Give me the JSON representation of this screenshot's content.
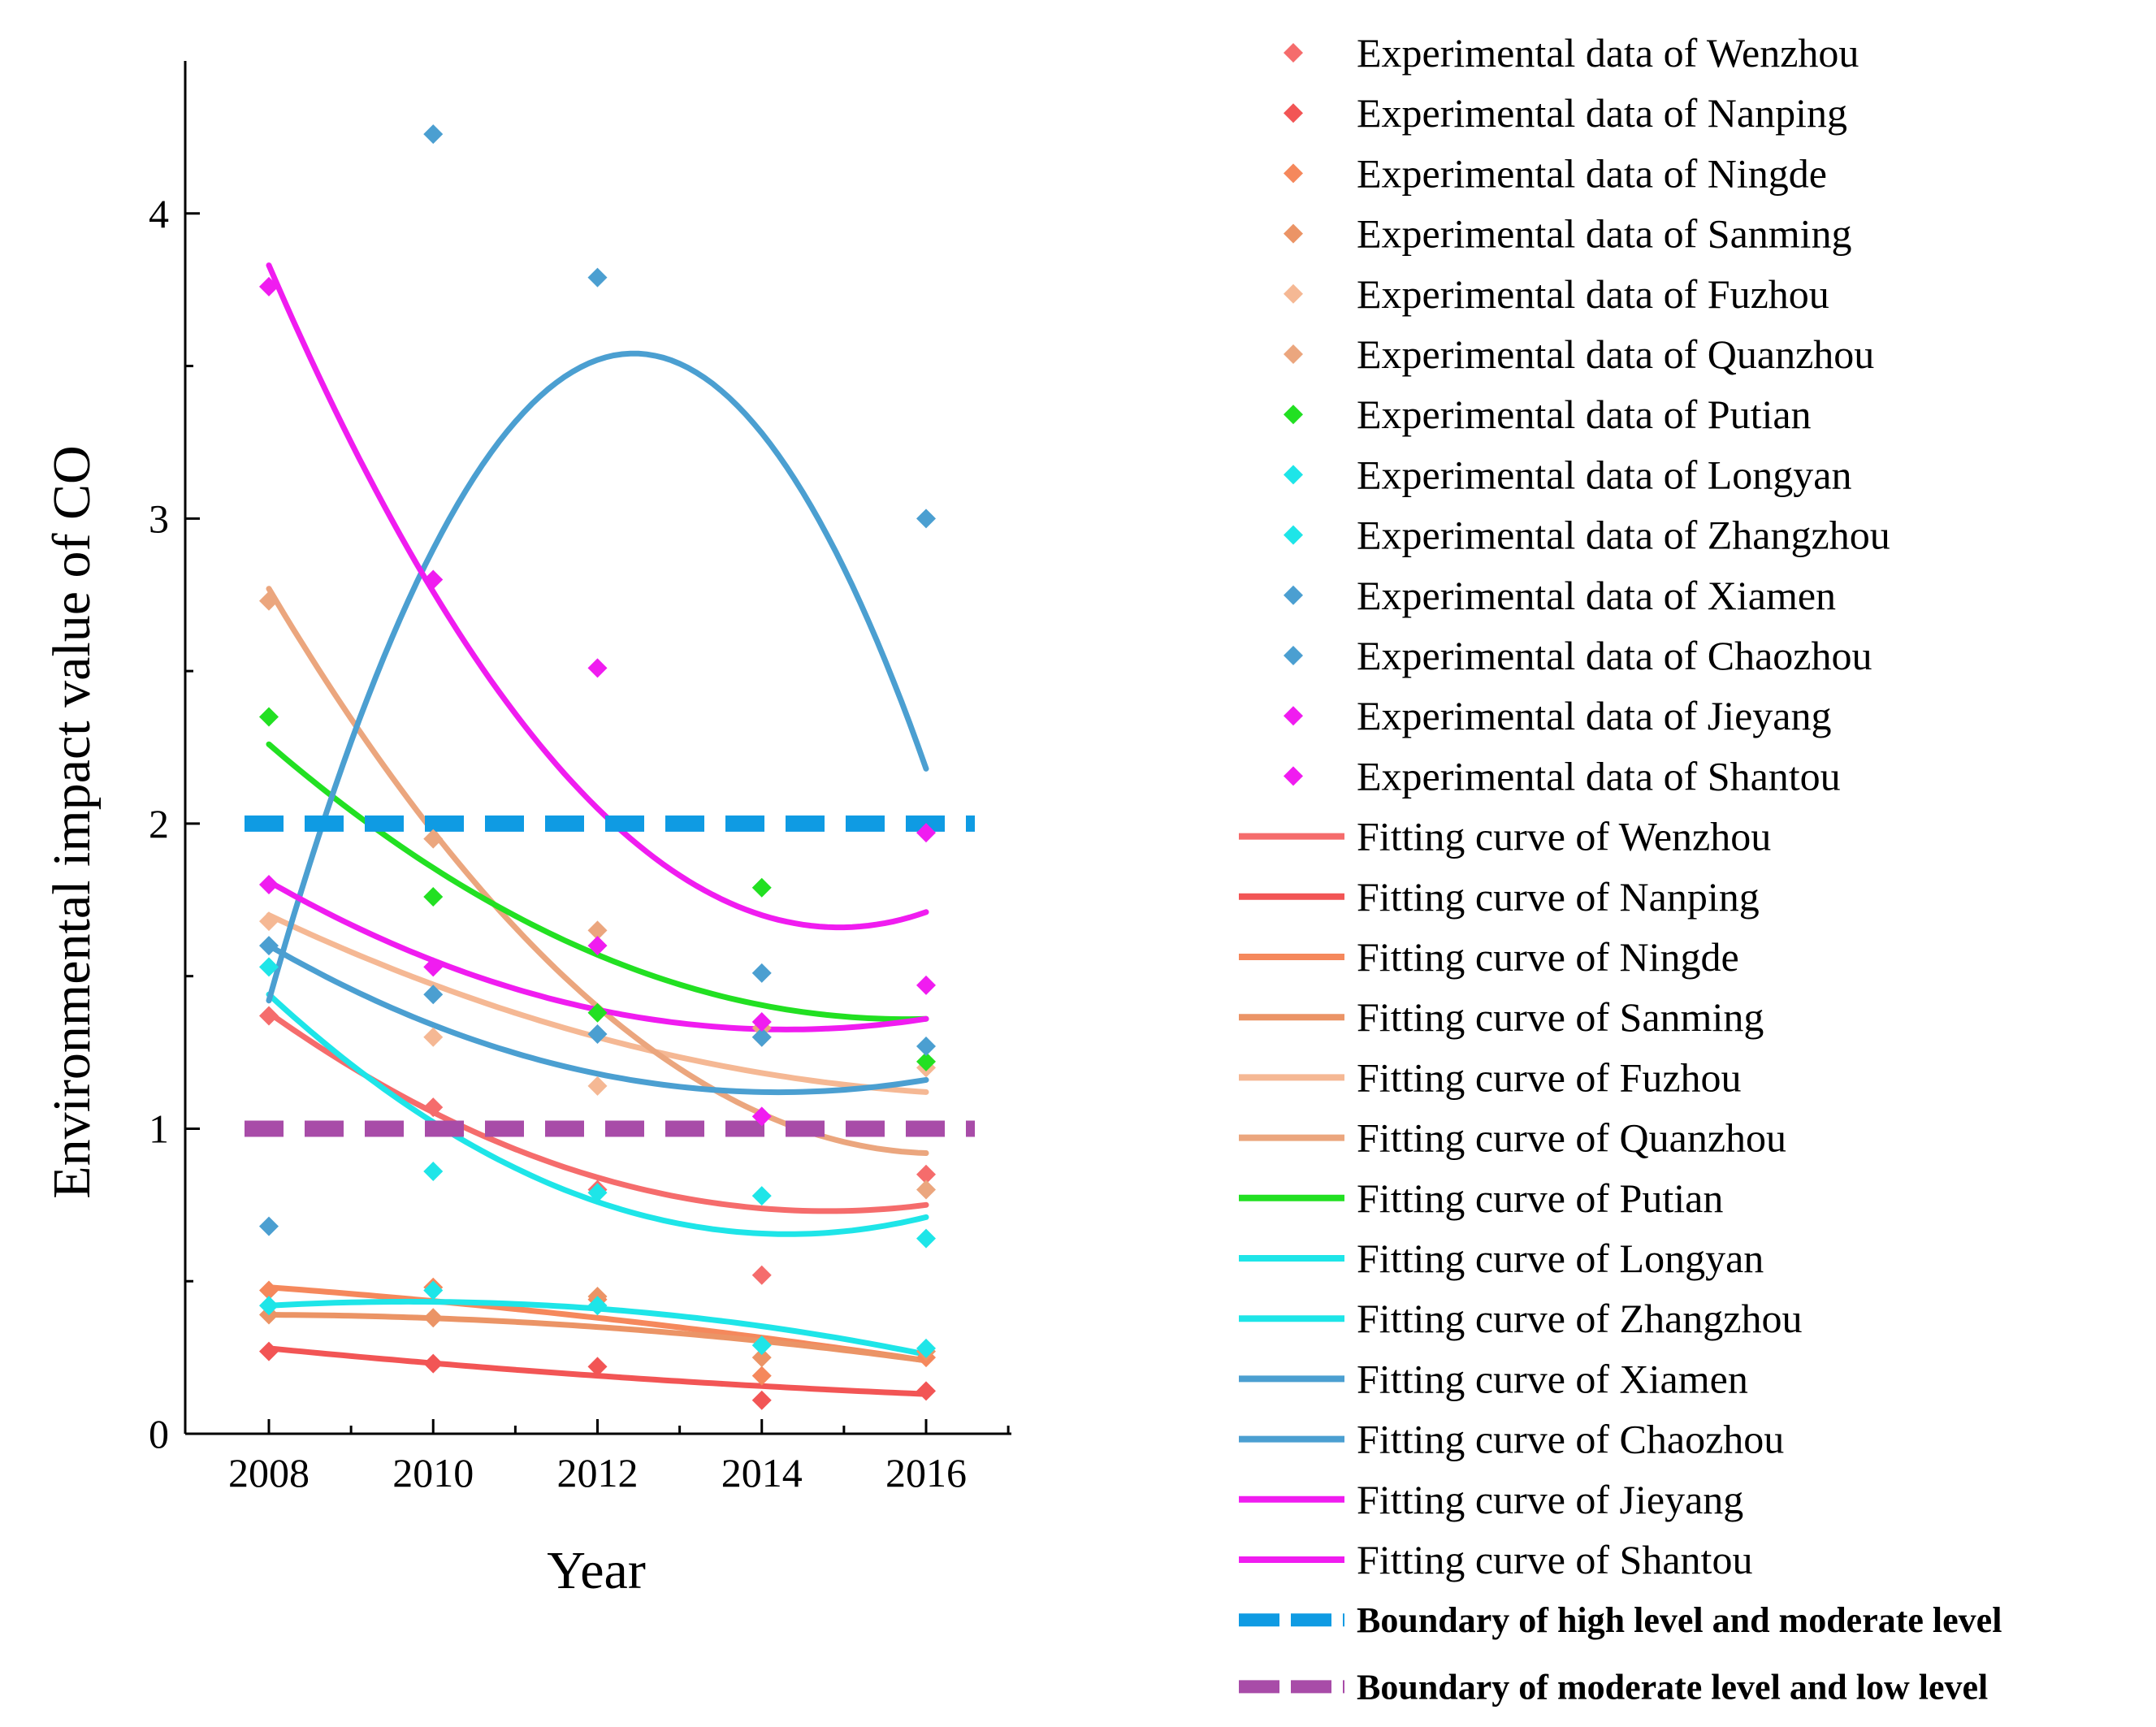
{
  "chart_data": {
    "type": "scatter",
    "xlabel": "Year",
    "ylabel": "Environmental impact value of CO",
    "xlim": [
      2007,
      2017
    ],
    "ylim": [
      0,
      4.5
    ],
    "xticks": [
      2008,
      2010,
      2012,
      2014,
      2016
    ],
    "yticks": [
      0,
      1,
      2,
      3,
      4
    ],
    "xtick_labels": [
      "2008",
      "2010",
      "2012",
      "2014",
      "2016"
    ],
    "ytick_labels": [
      "0",
      "1",
      "2",
      "3",
      "4"
    ],
    "grid": false,
    "legend_position": "right",
    "x": [
      2008,
      2010,
      2012,
      2014,
      2016
    ],
    "series": [
      {
        "name": "Wenzhou",
        "color": "#f56c6c",
        "scatter_label": "Experimental data of Wenzhou",
        "curve_label": "Fitting curve of Wenzhou",
        "values": [
          1.37,
          1.07,
          0.8,
          0.52,
          0.85
        ],
        "fit": [
          1.38,
          1.05,
          0.84,
          0.75,
          0.75
        ]
      },
      {
        "name": "Nanping",
        "color": "#f25555",
        "scatter_label": "Experimental data of Nanping",
        "curve_label": "Fitting curve of Nanping",
        "values": [
          0.27,
          0.23,
          0.22,
          0.11,
          0.14
        ],
        "fit": [
          0.28,
          0.23,
          0.19,
          0.15,
          0.13
        ]
      },
      {
        "name": "Ningde",
        "color": "#f5885c",
        "scatter_label": "Experimental data of Ningde",
        "curve_label": "Fitting curve of Ningde",
        "values": [
          0.47,
          0.48,
          0.44,
          0.19,
          0.25
        ],
        "fit": [
          0.48,
          0.44,
          0.38,
          0.32,
          0.24
        ]
      },
      {
        "name": "Sanming",
        "color": "#eb9466",
        "scatter_label": "Experimental data of Sanming",
        "curve_label": "Fitting curve of Sanming",
        "values": [
          0.39,
          0.38,
          0.45,
          0.25,
          0.27
        ],
        "fit": [
          0.39,
          0.38,
          0.35,
          0.31,
          0.24
        ]
      },
      {
        "name": "Fuzhou",
        "color": "#f5b894",
        "scatter_label": "Experimental data of Fuzhou",
        "curve_label": "Fitting curve of Fuzhou",
        "values": [
          1.68,
          1.3,
          1.14,
          1.3,
          1.2
        ],
        "fit": [
          1.7,
          1.48,
          1.3,
          1.18,
          1.12
        ]
      },
      {
        "name": "Quanzhou",
        "color": "#eba67e",
        "scatter_label": "Experimental data of Quanzhou",
        "curve_label": "Fitting curve of Quanzhou",
        "values": [
          2.73,
          1.95,
          1.65,
          1.33,
          0.8
        ],
        "fit": [
          2.77,
          1.96,
          1.4,
          1.07,
          0.92
        ]
      },
      {
        "name": "Putian",
        "color": "#22e022",
        "scatter_label": "Experimental data of Putian",
        "curve_label": "Fitting curve of Putian",
        "values": [
          2.35,
          1.76,
          1.38,
          1.79,
          1.22
        ],
        "fit": [
          2.26,
          1.86,
          1.57,
          1.41,
          1.36
        ]
      },
      {
        "name": "Longyan",
        "color": "#1ee5e8",
        "scatter_label": "Experimental data of Longyan",
        "curve_label": "Fitting curve of Longyan",
        "values": [
          1.53,
          0.86,
          0.79,
          0.78,
          0.64
        ],
        "fit": [
          1.44,
          1.02,
          0.76,
          0.66,
          0.71
        ]
      },
      {
        "name": "Zhangzhou",
        "color": "#1ee5e8",
        "scatter_label": "Experimental data of Zhangzhou",
        "curve_label": "Fitting curve of Zhangzhou",
        "values": [
          0.42,
          0.47,
          0.42,
          0.29,
          0.28
        ],
        "fit": [
          0.42,
          0.43,
          0.41,
          0.35,
          0.26
        ]
      },
      {
        "name": "Xiamen",
        "color": "#4b9fd1",
        "scatter_label": "Experimental data of Xiamen",
        "curve_label": "Fitting curve of Xiamen",
        "values": [
          0.68,
          4.26,
          3.79,
          1.51,
          3.0
        ],
        "fit": [
          1.42,
          2.89,
          3.52,
          3.29,
          2.18
        ]
      },
      {
        "name": "Chaozhou",
        "color": "#4b9fd1",
        "scatter_label": "Experimental data of Chaozhou",
        "curve_label": "Fitting curve of Chaozhou",
        "values": [
          1.6,
          1.44,
          1.31,
          1.3,
          1.27
        ],
        "fit": [
          1.6,
          1.34,
          1.18,
          1.12,
          1.16
        ]
      },
      {
        "name": "Jieyang",
        "color": "#f01cf0",
        "scatter_label": "Experimental data of Jieyang",
        "curve_label": "Fitting curve of Jieyang",
        "values": [
          3.76,
          2.8,
          2.51,
          1.04,
          1.97
        ],
        "fit": [
          3.83,
          2.75,
          2.05,
          1.71,
          1.71
        ]
      },
      {
        "name": "Shantou",
        "color": "#f01cf0",
        "scatter_label": "Experimental data of Shantou",
        "curve_label": "Fitting curve of Shantou",
        "values": [
          1.8,
          1.53,
          1.6,
          1.35,
          1.47
        ],
        "fit": [
          1.81,
          1.54,
          1.39,
          1.32,
          1.36
        ]
      }
    ],
    "reference_lines": [
      {
        "label": "Boundary of high level and moderate level",
        "y": 2,
        "color": "#0f9be3"
      },
      {
        "label": "Boundary of moderate level and low level",
        "y": 1,
        "color": "#a84ca8"
      }
    ]
  }
}
